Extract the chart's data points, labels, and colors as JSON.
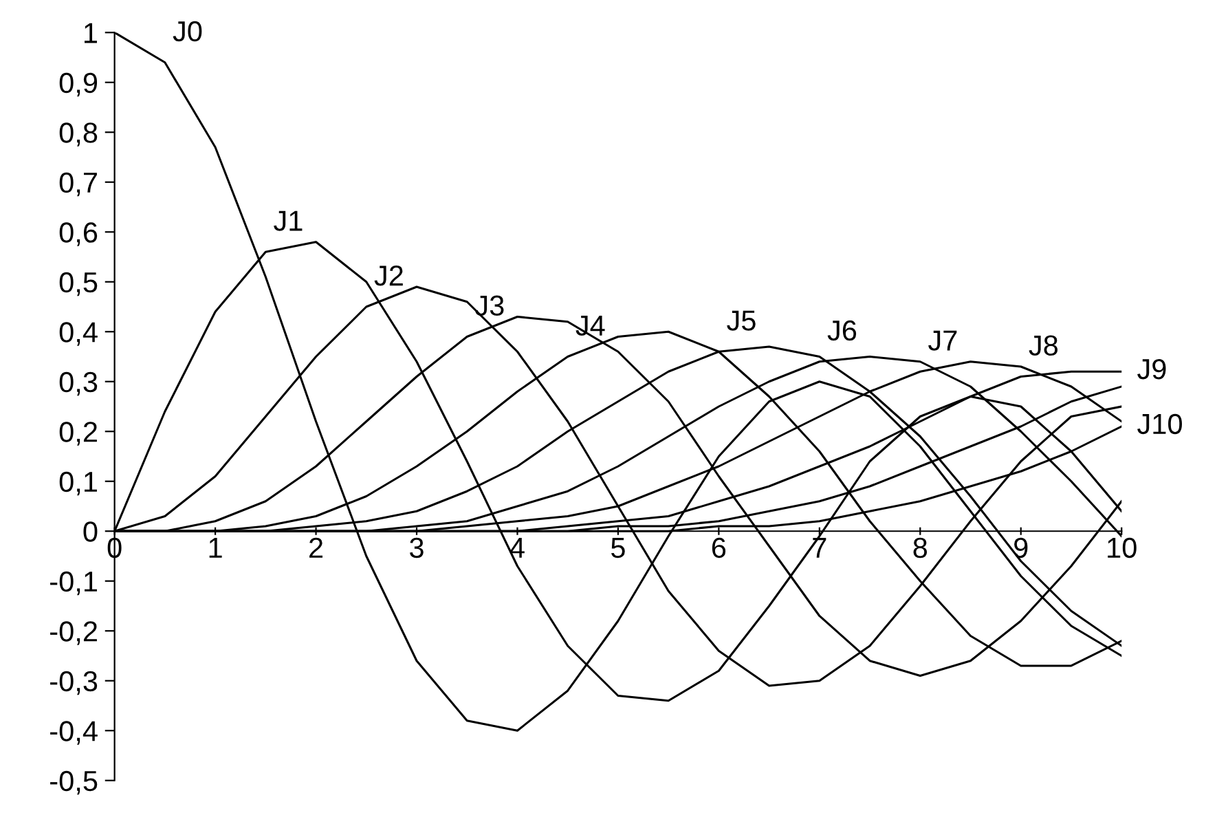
{
  "chart_data": {
    "type": "line",
    "x": [
      0,
      0.5,
      1,
      1.5,
      2,
      2.5,
      3,
      3.5,
      4,
      4.5,
      5,
      5.5,
      6,
      6.5,
      7,
      7.5,
      8,
      8.5,
      9,
      9.5,
      10
    ],
    "series": [
      {
        "color": "#000000",
        "values": [
          1,
          0.94,
          0.77,
          0.51,
          0.22,
          -0.05,
          -0.26,
          -0.38,
          -0.4,
          -0.32,
          -0.18,
          -0.01,
          0.15,
          0.26,
          0.3,
          0.27,
          0.17,
          0.04,
          -0.09,
          -0.19,
          -0.25
        ]
      },
      {
        "color": "#000000",
        "values": [
          0,
          0.24,
          0.44,
          0.56,
          0.58,
          0.5,
          0.34,
          0.14,
          -0.07,
          -0.23,
          -0.33,
          -0.34,
          -0.28,
          -0.15,
          -0.01,
          0.14,
          0.23,
          0.27,
          0.25,
          0.16,
          0.04
        ]
      },
      {
        "color": "#000000",
        "values": [
          0,
          0.03,
          0.11,
          0.23,
          0.35,
          0.45,
          0.49,
          0.46,
          0.36,
          0.22,
          0.05,
          -0.12,
          -0.24,
          -0.31,
          -0.3,
          -0.23,
          -0.11,
          0.02,
          0.14,
          0.23,
          0.25
        ]
      },
      {
        "color": "#000000",
        "values": [
          0,
          0,
          0.02,
          0.06,
          0.13,
          0.22,
          0.31,
          0.39,
          0.43,
          0.42,
          0.36,
          0.26,
          0.11,
          -0.03,
          -0.17,
          -0.26,
          -0.29,
          -0.26,
          -0.18,
          -0.07,
          0.06
        ]
      },
      {
        "color": "#000000",
        "values": [
          0,
          0,
          0,
          0.01,
          0.03,
          0.07,
          0.13,
          0.2,
          0.28,
          0.35,
          0.39,
          0.4,
          0.36,
          0.27,
          0.16,
          0.02,
          -0.1,
          -0.21,
          -0.27,
          -0.27,
          -0.22
        ]
      },
      {
        "color": "#000000",
        "values": [
          0,
          0,
          0,
          0,
          0.01,
          0.02,
          0.04,
          0.08,
          0.13,
          0.2,
          0.26,
          0.32,
          0.36,
          0.37,
          0.35,
          0.28,
          0.19,
          0.07,
          -0.06,
          -0.16,
          -0.23
        ]
      },
      {
        "color": "#000000",
        "values": [
          0,
          0,
          0,
          0,
          0,
          0,
          0.01,
          0.02,
          0.05,
          0.08,
          0.13,
          0.19,
          0.25,
          0.3,
          0.34,
          0.35,
          0.34,
          0.29,
          0.2,
          0.1,
          -0.01
        ]
      },
      {
        "color": "#000000",
        "values": [
          0,
          0,
          0,
          0,
          0,
          0,
          0,
          0.01,
          0.02,
          0.03,
          0.05,
          0.09,
          0.13,
          0.18,
          0.23,
          0.28,
          0.32,
          0.34,
          0.33,
          0.29,
          0.22
        ]
      },
      {
        "color": "#000000",
        "values": [
          0,
          0,
          0,
          0,
          0,
          0,
          0,
          0,
          0,
          0.01,
          0.02,
          0.03,
          0.06,
          0.09,
          0.13,
          0.17,
          0.22,
          0.27,
          0.31,
          0.32,
          0.32
        ]
      },
      {
        "color": "#000000",
        "values": [
          0,
          0,
          0,
          0,
          0,
          0,
          0,
          0,
          0,
          0,
          0.01,
          0.01,
          0.02,
          0.04,
          0.06,
          0.09,
          0.13,
          0.17,
          0.21,
          0.26,
          0.29
        ]
      },
      {
        "color": "#000000",
        "values": [
          0,
          0,
          0,
          0,
          0,
          0,
          0,
          0,
          0,
          0,
          0,
          0,
          0.01,
          0.01,
          0.02,
          0.04,
          0.06,
          0.09,
          0.12,
          0.16,
          0.21
        ]
      }
    ],
    "annotations": [
      {
        "text": "J0",
        "x": 0.5,
        "y": 0.94
      },
      {
        "text": "J1",
        "x": 1.5,
        "y": 0.56
      },
      {
        "text": "J2",
        "x": 2.5,
        "y": 0.45
      },
      {
        "text": "J3",
        "x": 3.5,
        "y": 0.39
      },
      {
        "text": "J4",
        "x": 4.5,
        "y": 0.35
      },
      {
        "text": "J5",
        "x": 6,
        "y": 0.36
      },
      {
        "text": "J6",
        "x": 7,
        "y": 0.34
      },
      {
        "text": "J7",
        "x": 8,
        "y": 0.32
      },
      {
        "text": "J8",
        "x": 9,
        "y": 0.31
      },
      {
        "text": "J9",
        "x": 10,
        "y": 0.32
      },
      {
        "text": "J10",
        "x": 10,
        "y": 0.21
      }
    ],
    "xlim": [
      0,
      10
    ],
    "xticks": [
      0,
      1,
      2,
      3,
      4,
      5,
      6,
      7,
      8,
      9,
      10
    ],
    "ylim": [
      -0.5,
      1
    ],
    "yticks": [
      {
        "value": -0.5,
        "label": "-0,5"
      },
      {
        "value": -0.4,
        "label": "-0,4"
      },
      {
        "value": -0.3,
        "label": "-0,3"
      },
      {
        "value": -0.2,
        "label": "-0,2"
      },
      {
        "value": -0.1,
        "label": "-0,1"
      },
      0,
      {
        "value": 0.1,
        "label": "0,1"
      },
      {
        "value": 0.2,
        "label": "0,2"
      },
      {
        "value": 0.3,
        "label": "0,3"
      },
      {
        "value": 0.4,
        "label": "0,4"
      },
      {
        "value": 0.5,
        "label": "0,5"
      },
      {
        "value": 0.6,
        "label": "0,6"
      },
      {
        "value": 0.7,
        "label": "0,7"
      },
      {
        "value": 0.8,
        "label": "0,8"
      },
      {
        "value": 0.9,
        "label": "0,9"
      },
      1
    ],
    "grid": false,
    "legend": false,
    "marker": "none",
    "line_style": "solid"
  }
}
